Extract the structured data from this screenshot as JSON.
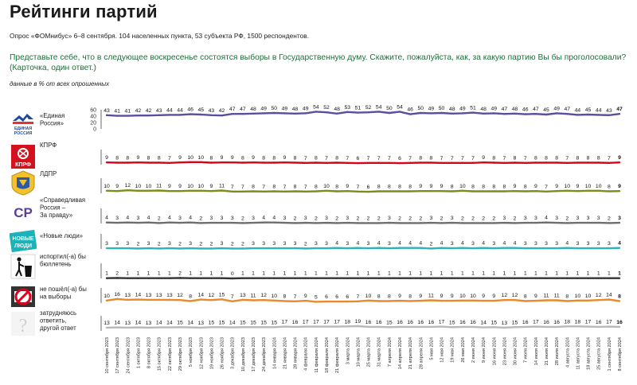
{
  "header": {
    "title": "Рейтинги партий",
    "subtitle": "Опрос «ФОМнибус» 6–8 сентября. 104 населенных пункта, 53 субъекта РФ, 1500 респондентов.",
    "question": "Представьте себе, что в следующее воскресенье состоятся выборы в Государственную думу. Скажите, пожалуйста, как, за какую партию Вы бы проголосовали? (Карточка, один ответ.)",
    "note": "данные в % от всех опрошенных"
  },
  "logo_texts": {
    "er": "ЕДИНАЯ РОССИЯ",
    "kprf": "КПРФ",
    "sr": "СР",
    "nl": "НОВЫЕ ЛЮДИ"
  },
  "chart_data": {
    "type": "line",
    "ylim": [
      0,
      60
    ],
    "yticks": [
      0,
      20,
      40,
      60
    ],
    "dates": [
      "10 сентября 2023",
      "17 сентября 2023",
      "24 сентября 2023",
      "1 октября 2023",
      "8 октября 2023",
      "15 октября 2023",
      "22 октября 2023",
      "29 октября 2023",
      "5 ноября 2023",
      "12 ноября 2023",
      "19 ноября 2023",
      "26 ноября 2023",
      "3 декабря 2023",
      "10 декабря 2023",
      "17 декабря 2023",
      "24 декабря 2023",
      "14 января 2024",
      "21 января 2024",
      "28 января 2024",
      "4 февраля 2024",
      "11 февраля 2024",
      "18 февраля 2024",
      "21 февраля 2024",
      "3 марта 2024",
      "10 марта 2024",
      "25 марта 2024",
      "31 марта 2024",
      "7 апреля 2024",
      "14 апреля 2024",
      "21 апреля 2024",
      "28 апреля 2024",
      "5 мая 2024",
      "12 мая 2024",
      "19 мая 2024",
      "26 мая 2024",
      "2 июня 2024",
      "9 июня 2024",
      "16 июня 2024",
      "23 июня 2024",
      "30 июня 2024",
      "7 июля 2024",
      "14 июля 2024",
      "21 июля 2024",
      "28 июля 2024",
      "4 августа 2024",
      "11 августа 2024",
      "18 августа 2024",
      "25 августа 2024",
      "1 сентября 2024",
      "8 сентября 2024"
    ],
    "series": [
      {
        "name": "«Единая Россия»",
        "color": "#5a4f9e",
        "icon": "united-russia-logo-icon",
        "values": [
          43,
          41,
          41,
          42,
          42,
          43,
          44,
          44,
          46,
          45,
          43,
          42,
          47,
          47,
          48,
          49,
          50,
          49,
          48,
          49,
          54,
          52,
          48,
          53,
          51,
          52,
          54,
          50,
          54,
          46,
          50,
          49,
          50,
          48,
          49,
          51,
          48,
          49,
          47,
          48,
          46,
          47,
          45,
          49,
          47,
          44,
          45,
          44,
          43,
          47
        ]
      },
      {
        "name": "КПРФ",
        "color": "#e0001b",
        "icon": "kprf-logo-icon",
        "values": [
          9,
          8,
          8,
          9,
          8,
          8,
          7,
          9,
          10,
          10,
          8,
          9,
          9,
          8,
          9,
          8,
          8,
          9,
          8,
          7,
          8,
          7,
          8,
          7,
          6,
          7,
          7,
          7,
          6,
          7,
          8,
          8,
          7,
          7,
          7,
          7,
          9,
          8,
          7,
          8,
          7,
          8,
          8,
          8,
          7,
          8,
          8,
          8,
          7,
          9
        ]
      },
      {
        "name": "ЛДПР",
        "color": "#7f8c19",
        "icon": "ldpr-logo-icon",
        "values": [
          10,
          9,
          12,
          10,
          10,
          11,
          9,
          9,
          10,
          10,
          9,
          11,
          7,
          7,
          8,
          7,
          8,
          7,
          8,
          7,
          8,
          10,
          8,
          9,
          7,
          6,
          8,
          8,
          8,
          8,
          9,
          9,
          9,
          8,
          10,
          8,
          8,
          8,
          8,
          9,
          8,
          9,
          7,
          9,
          10,
          9,
          10,
          10,
          8,
          9
        ]
      },
      {
        "name": "«Справедливая Россия – За правду»",
        "color": "#6e6e6e",
        "icon": "fair-russia-logo-icon",
        "values": [
          4,
          3,
          4,
          3,
          4,
          2,
          4,
          3,
          4,
          2,
          3,
          3,
          3,
          2,
          3,
          4,
          4,
          3,
          2,
          3,
          2,
          3,
          2,
          3,
          2,
          2,
          2,
          3,
          2,
          2,
          2,
          3,
          2,
          3,
          2,
          2,
          2,
          2,
          3,
          2,
          3,
          3,
          4,
          3,
          2,
          3,
          3,
          3,
          2,
          3
        ]
      },
      {
        "name": "«Новые люди»",
        "color": "#2db3ba",
        "icon": "new-people-logo-icon",
        "values": [
          3,
          3,
          3,
          2,
          3,
          2,
          3,
          2,
          3,
          2,
          2,
          3,
          2,
          2,
          3,
          3,
          3,
          3,
          3,
          2,
          3,
          3,
          4,
          3,
          4,
          3,
          4,
          3,
          4,
          4,
          4,
          2,
          4,
          3,
          4,
          3,
          4,
          3,
          4,
          4,
          3,
          3,
          3,
          3,
          4,
          3,
          3,
          3,
          3,
          4
        ]
      },
      {
        "name": "испортил(-а) бы бюллетень",
        "color": "#333333",
        "icon": "trash-bin-icon",
        "values": [
          1,
          2,
          1,
          1,
          1,
          1,
          1,
          2,
          1,
          1,
          1,
          1,
          0,
          1,
          1,
          1,
          1,
          1,
          1,
          1,
          1,
          1,
          1,
          1,
          1,
          1,
          1,
          1,
          1,
          1,
          1,
          1,
          1,
          1,
          1,
          1,
          1,
          1,
          1,
          1,
          1,
          1,
          1,
          1,
          1,
          1,
          1,
          1,
          1,
          1
        ]
      },
      {
        "name": "не пошёл(-а) бы на выборы",
        "color": "#e98a2c",
        "icon": "no-vote-icon",
        "values": [
          10,
          16,
          13,
          14,
          13,
          13,
          13,
          12,
          8,
          14,
          12,
          15,
          7,
          13,
          11,
          12,
          10,
          8,
          7,
          9,
          5,
          6,
          6,
          6,
          7,
          10,
          8,
          8,
          9,
          8,
          9,
          11,
          9,
          9,
          10,
          10,
          9,
          9,
          12,
          12,
          8,
          9,
          11,
          11,
          8,
          10,
          10,
          12,
          14,
          8
        ]
      },
      {
        "name": "затрудняюсь ответить, другой ответ",
        "color": "#b8b8b8",
        "icon": "question-icon",
        "values": [
          13,
          14,
          13,
          14,
          13,
          14,
          14,
          15,
          14,
          13,
          15,
          15,
          14,
          15,
          15,
          15,
          15,
          17,
          16,
          17,
          17,
          17,
          17,
          18,
          19,
          16,
          16,
          15,
          16,
          16,
          16,
          16,
          17,
          15,
          16,
          16,
          14,
          15,
          13,
          15,
          16,
          17,
          16,
          16,
          18,
          18,
          17,
          16,
          17,
          16
        ]
      }
    ]
  }
}
